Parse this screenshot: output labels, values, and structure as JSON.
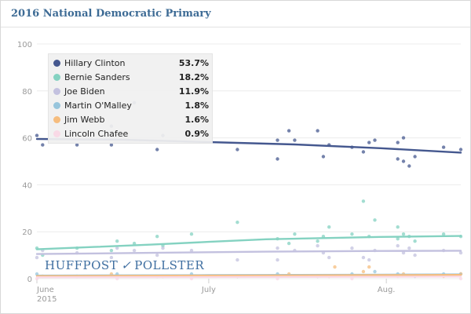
{
  "chart_data": {
    "type": "scatter",
    "title": "2016 National Democratic Primary",
    "ylim": [
      0,
      100
    ],
    "yticks": [
      0,
      20,
      40,
      60,
      80,
      100
    ],
    "xrange_days": [
      0,
      74
    ],
    "xticks": [
      {
        "label": "June",
        "sublabel": "2015",
        "day": 0
      },
      {
        "label": "July",
        "sublabel": "",
        "day": 30
      },
      {
        "label": "Aug.",
        "sublabel": "",
        "day": 61
      }
    ],
    "series": [
      {
        "name": "Hillary Clinton",
        "value": "53.7%",
        "color": "#45588f",
        "trend": [
          [
            0,
            59.5
          ],
          [
            15,
            59.2
          ],
          [
            30,
            58.2
          ],
          [
            45,
            57.2
          ],
          [
            60,
            55.6
          ],
          [
            74,
            53.7
          ]
        ],
        "points": [
          [
            0,
            61
          ],
          [
            1,
            57
          ],
          [
            7,
            57
          ],
          [
            13,
            57
          ],
          [
            13,
            65
          ],
          [
            17,
            75
          ],
          [
            21,
            55
          ],
          [
            22,
            61
          ],
          [
            35,
            55
          ],
          [
            42,
            51
          ],
          [
            42,
            59
          ],
          [
            44,
            63
          ],
          [
            45,
            59
          ],
          [
            49,
            63
          ],
          [
            50,
            52
          ],
          [
            51,
            57
          ],
          [
            55,
            56
          ],
          [
            57,
            54
          ],
          [
            58,
            58
          ],
          [
            59,
            59
          ],
          [
            63,
            51
          ],
          [
            63,
            58
          ],
          [
            64,
            60
          ],
          [
            64,
            50
          ],
          [
            65,
            48
          ],
          [
            66,
            52
          ],
          [
            71,
            56
          ],
          [
            74,
            55
          ]
        ]
      },
      {
        "name": "Bernie Sanders",
        "value": "18.2%",
        "color": "#84d2c1",
        "trend": [
          [
            0,
            12.5
          ],
          [
            10,
            13.5
          ],
          [
            20,
            14.5
          ],
          [
            30,
            15.7
          ],
          [
            40,
            16.8
          ],
          [
            50,
            17.3
          ],
          [
            60,
            17.8
          ],
          [
            74,
            18.2
          ]
        ],
        "points": [
          [
            0,
            13
          ],
          [
            1,
            10
          ],
          [
            7,
            13
          ],
          [
            13,
            12
          ],
          [
            14,
            16
          ],
          [
            17,
            15
          ],
          [
            21,
            18
          ],
          [
            22,
            14
          ],
          [
            27,
            19
          ],
          [
            35,
            24
          ],
          [
            42,
            17
          ],
          [
            44,
            15
          ],
          [
            45,
            19
          ],
          [
            49,
            16
          ],
          [
            50,
            18
          ],
          [
            51,
            22
          ],
          [
            55,
            19
          ],
          [
            57,
            33
          ],
          [
            58,
            18
          ],
          [
            59,
            25
          ],
          [
            63,
            22
          ],
          [
            63,
            17
          ],
          [
            64,
            19
          ],
          [
            65,
            18
          ],
          [
            66,
            16
          ],
          [
            71,
            19
          ],
          [
            74,
            18
          ]
        ]
      },
      {
        "name": "Joe Biden",
        "value": "11.9%",
        "color": "#c3c1df",
        "trend": [
          [
            0,
            10.5
          ],
          [
            20,
            11.0
          ],
          [
            40,
            11.5
          ],
          [
            60,
            11.8
          ],
          [
            74,
            11.9
          ]
        ],
        "points": [
          [
            0,
            9
          ],
          [
            1,
            12
          ],
          [
            7,
            11
          ],
          [
            13,
            9
          ],
          [
            14,
            13
          ],
          [
            17,
            12
          ],
          [
            21,
            10
          ],
          [
            22,
            13
          ],
          [
            27,
            12
          ],
          [
            35,
            8
          ],
          [
            42,
            13
          ],
          [
            42,
            8
          ],
          [
            45,
            12
          ],
          [
            49,
            14
          ],
          [
            50,
            11
          ],
          [
            51,
            9
          ],
          [
            55,
            13
          ],
          [
            57,
            9
          ],
          [
            58,
            8
          ],
          [
            59,
            12
          ],
          [
            63,
            14
          ],
          [
            64,
            11
          ],
          [
            65,
            13
          ],
          [
            66,
            10
          ],
          [
            71,
            12
          ],
          [
            74,
            11
          ]
        ]
      },
      {
        "name": "Martin O'Malley",
        "value": "1.8%",
        "color": "#97c5dc",
        "trend": [
          [
            0,
            1.3
          ],
          [
            30,
            1.5
          ],
          [
            60,
            1.7
          ],
          [
            74,
            1.8
          ]
        ],
        "points": [
          [
            0,
            2
          ],
          [
            7,
            1
          ],
          [
            14,
            2
          ],
          [
            21,
            1
          ],
          [
            27,
            2
          ],
          [
            35,
            1
          ],
          [
            42,
            2
          ],
          [
            49,
            1
          ],
          [
            55,
            2
          ],
          [
            59,
            3
          ],
          [
            63,
            2
          ],
          [
            66,
            1
          ],
          [
            71,
            2
          ],
          [
            74,
            2
          ]
        ]
      },
      {
        "name": "Jim Webb",
        "value": "1.6%",
        "color": "#f6bd7e",
        "trend": [
          [
            0,
            1.1
          ],
          [
            30,
            1.3
          ],
          [
            60,
            1.5
          ],
          [
            74,
            1.6
          ]
        ],
        "points": [
          [
            1,
            1
          ],
          [
            13,
            2
          ],
          [
            22,
            1
          ],
          [
            35,
            1
          ],
          [
            44,
            2
          ],
          [
            51,
            1
          ],
          [
            52,
            5
          ],
          [
            57,
            3
          ],
          [
            58,
            5
          ],
          [
            64,
            2
          ],
          [
            71,
            1
          ],
          [
            74,
            2
          ]
        ]
      },
      {
        "name": "Lincoln Chafee",
        "value": "0.9%",
        "color": "#f9d9e6",
        "trend": [
          [
            0,
            0.6
          ],
          [
            30,
            0.7
          ],
          [
            60,
            0.8
          ],
          [
            74,
            0.9
          ]
        ],
        "points": [
          [
            0,
            0
          ],
          [
            7,
            1
          ],
          [
            14,
            0
          ],
          [
            21,
            1
          ],
          [
            27,
            0
          ],
          [
            35,
            1
          ],
          [
            42,
            0
          ],
          [
            49,
            1
          ],
          [
            55,
            0
          ],
          [
            63,
            1
          ],
          [
            74,
            0
          ]
        ]
      }
    ]
  },
  "branding": {
    "left": "HUFFPOST",
    "separator": "✓",
    "right": "POLLSTER"
  }
}
